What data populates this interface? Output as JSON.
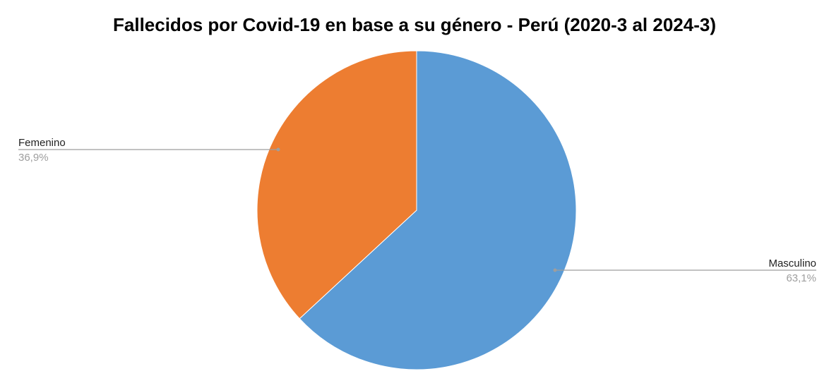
{
  "chart_data": {
    "type": "pie",
    "title": "Fallecidos por Covid-19 en base a su género - Perú (2020-3 al 2024-3)",
    "slices": [
      {
        "label": "Masculino",
        "value": 63.1,
        "value_label": "63,1%",
        "color": "#5b9bd5"
      },
      {
        "label": "Femenino",
        "value": 36.9,
        "value_label": "36,9%",
        "color": "#ed7d31"
      }
    ],
    "start_angle": "12 o'clock",
    "direction": "clockwise",
    "legend": "none",
    "label_style": "leader lines",
    "label_colors": {
      "name": "#222222",
      "value": "#9e9e9e",
      "leader": "#9e9e9e"
    }
  }
}
